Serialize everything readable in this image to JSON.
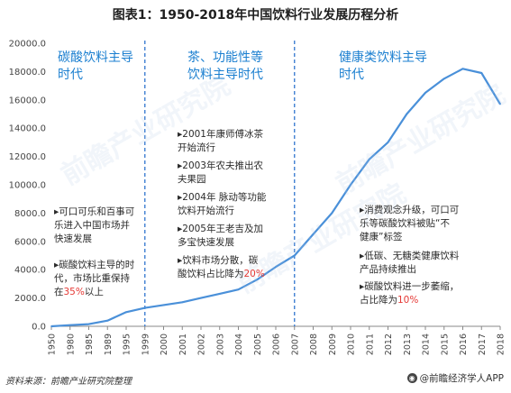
{
  "title": "图表1：1950-2018年中国饮料行业发展历程分析",
  "source": "资料来源：前瞻产业研究院整理",
  "brand": "@前瞻经济学人APP",
  "watermark": "前瞻产业研究院",
  "colors": {
    "line": "#4a90d9",
    "era_text": "#1b7fd0",
    "divider": "#3f7fd2",
    "highlight": "#e53935",
    "axis": "#888888"
  },
  "eras": [
    {
      "label": "碳酸饮料主导\n时代"
    },
    {
      "label": "茶、功能性等\n饮料主导时代"
    },
    {
      "label": "健康类饮料主导\n时代"
    }
  ],
  "notes": {
    "era1": [
      {
        "text": "▸可口可乐和百事可\n乐进入中国市场并\n快速发展"
      },
      {
        "text": "▸碳酸饮料主导的时\n代，市场比重保持\n在",
        "highlight": "35%",
        "suffix": "以上"
      }
    ],
    "era2": [
      {
        "text": "▸2001年康师傅冰茶\n开始流行"
      },
      {
        "text": "▸2003年农夫推出农\n夫果园"
      },
      {
        "text": "▸2004年 脉动等功能\n饮料开始流行"
      },
      {
        "text": "▸2005年王老吉及加\n多宝快速发展"
      },
      {
        "text": "▸饮料市场分散，碳\n酸饮料占比降为",
        "highlight": "20%",
        "suffix": ""
      }
    ],
    "era3": [
      {
        "text": "▸消费观念升级，可口可\n乐等碳酸饮料被贴“不\n健康”标签"
      },
      {
        "text": "▸低碳、无糖类健康饮料\n产品持续推出"
      },
      {
        "text": "▸碳酸饮料进一步萎缩，\n占比降为",
        "highlight": "10%",
        "suffix": ""
      }
    ]
  },
  "chart_data": {
    "type": "line",
    "title": "",
    "xlabel": "",
    "ylabel": "",
    "categories": [
      "1950",
      "1980",
      "1985",
      "1989",
      "1995",
      "1999",
      "2000",
      "2001",
      "2002",
      "2003",
      "2004",
      "2005",
      "2006",
      "2007",
      "2008",
      "2009",
      "2010",
      "2011",
      "2012",
      "2013",
      "2014",
      "2015",
      "2016",
      "2017",
      "2018"
    ],
    "series": [
      {
        "values": [
          0,
          80,
          150,
          400,
          1000,
          1300,
          1500,
          1700,
          2000,
          2300,
          2600,
          3300,
          4200,
          5000,
          6500,
          8000,
          10000,
          11800,
          13000,
          15000,
          16500,
          17500,
          18200,
          17900,
          15700
        ]
      }
    ],
    "ylim": [
      0,
      20000
    ],
    "yticks": [
      "0.0",
      "2000.0",
      "4000.0",
      "6000.0",
      "8000.0",
      "10000.0",
      "12000.0",
      "14000.0",
      "16000.0",
      "18000.0",
      "20000.0"
    ],
    "grid": false,
    "era_boundaries": [
      "1999",
      "2007"
    ]
  }
}
